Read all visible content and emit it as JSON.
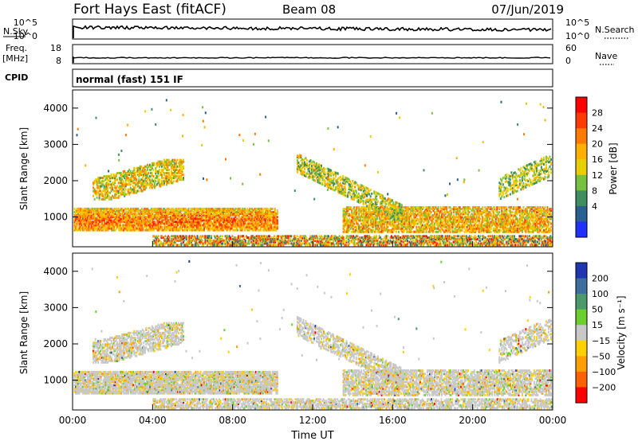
{
  "header": {
    "station": "Fort Hays East (fitACF)",
    "beam": "Beam 08",
    "date": "07/Jun/2019"
  },
  "strips": {
    "nsky_label": "N.Sky",
    "nsearch_label": "N.Search",
    "noise_ticks_left": [
      "10^5",
      "10^0"
    ],
    "noise_ticks_right": [
      "10^5",
      "10^0"
    ],
    "freq_label_line1": "Freq.",
    "freq_label_line2": "[MHz]",
    "freq_ticks": [
      "18",
      "8"
    ],
    "nave_label": "Nave",
    "nave_ticks": [
      "60",
      "0"
    ],
    "cpid_label": "CPID",
    "mode_text": "normal (fast) 151 IF"
  },
  "chart_data": [
    {
      "type": "heatmap",
      "name": "power",
      "ylabel": "Slant Range [km]",
      "xlabel": "",
      "ylim": [
        180,
        4500
      ],
      "yticks": [
        1000,
        2000,
        3000,
        4000
      ],
      "xticks": [
        "00:00",
        "04:00",
        "08:00",
        "12:00",
        "16:00",
        "20:00",
        "00:00"
      ],
      "colorbar": {
        "label": "Power [dB]",
        "ticks": [
          "28",
          "24",
          "20",
          "16",
          "12",
          "8",
          "4"
        ],
        "colors": [
          "#ff0000",
          "#ff3a00",
          "#ff7a00",
          "#ffb000",
          "#e8d000",
          "#77c040",
          "#3e8e5e",
          "#2a5f92",
          "#2030ff"
        ]
      }
    },
    {
      "type": "heatmap",
      "name": "velocity",
      "ylabel": "Slant Range [km]",
      "xlabel": "Time UT",
      "ylim": [
        180,
        4500
      ],
      "yticks": [
        1000,
        2000,
        3000,
        4000
      ],
      "xticks": [
        "00:00",
        "04:00",
        "08:00",
        "12:00",
        "16:00",
        "20:00",
        "00:00"
      ],
      "colorbar": {
        "label": "Velocity [m s⁻¹]",
        "ticks": [
          "200",
          "100",
          "50",
          "15",
          "−15",
          "−50",
          "−100",
          "−200"
        ],
        "colors": [
          "#1f36b0",
          "#3e6e9e",
          "#4c9a6a",
          "#6ccf30",
          "#c8c8c8",
          "#ffd000",
          "#ffa000",
          "#ff6000",
          "#ff0000"
        ]
      }
    }
  ]
}
